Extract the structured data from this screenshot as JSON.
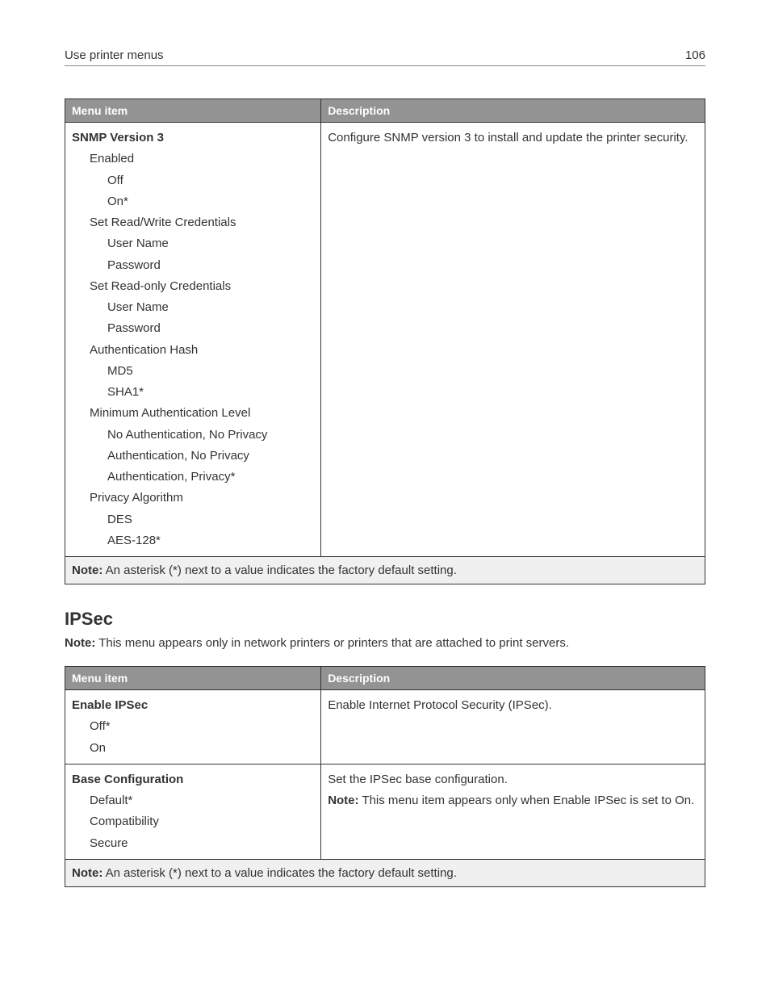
{
  "header": {
    "title": "Use printer menus",
    "page_number": "106"
  },
  "table1": {
    "col_menu": "Menu item",
    "col_desc": "Description",
    "row1": {
      "title": "SNMP Version 3",
      "items": [
        {
          "text": "Enabled",
          "indent": 1
        },
        {
          "text": "Off",
          "indent": 2
        },
        {
          "text": "On*",
          "indent": 2
        },
        {
          "text": "Set Read/Write Credentials",
          "indent": 1
        },
        {
          "text": "User Name",
          "indent": 2
        },
        {
          "text": "Password",
          "indent": 2
        },
        {
          "text": "Set Read-only Credentials",
          "indent": 1
        },
        {
          "text": "User Name",
          "indent": 2
        },
        {
          "text": "Password",
          "indent": 2
        },
        {
          "text": "Authentication Hash",
          "indent": 1
        },
        {
          "text": "MD5",
          "indent": 2
        },
        {
          "text": "SHA1*",
          "indent": 2
        },
        {
          "text": "Minimum Authentication Level",
          "indent": 1
        },
        {
          "text": "No Authentication, No Privacy",
          "indent": 2
        },
        {
          "text": "Authentication, No Privacy",
          "indent": 2
        },
        {
          "text": "Authentication, Privacy*",
          "indent": 2
        },
        {
          "text": "Privacy Algorithm",
          "indent": 1
        },
        {
          "text": "DES",
          "indent": 2
        },
        {
          "text": "AES-128*",
          "indent": 2
        }
      ],
      "desc": "Configure SNMP version 3 to install and update the printer security."
    },
    "note_label": "Note:",
    "note_text": " An asterisk (*) next to a value indicates the factory default setting."
  },
  "section": {
    "heading": "IPSec",
    "note_label": "Note:",
    "note_text": " This menu appears only in network printers or printers that are attached to print servers."
  },
  "table2": {
    "col_menu": "Menu item",
    "col_desc": "Description",
    "row1": {
      "title": "Enable IPSec",
      "items": [
        {
          "text": "Off*",
          "indent": 1
        },
        {
          "text": "On",
          "indent": 1
        }
      ],
      "desc": "Enable Internet Protocol Security (IPSec)."
    },
    "row2": {
      "title": "Base Configuration",
      "items": [
        {
          "text": "Default*",
          "indent": 1
        },
        {
          "text": "Compatibility",
          "indent": 1
        },
        {
          "text": "Secure",
          "indent": 1
        }
      ],
      "desc_line1": "Set the IPSec base configuration.",
      "desc_note_label": "Note:",
      "desc_note_text": " This menu item appears only when Enable IPSec is set to On."
    },
    "note_label": "Note:",
    "note_text": " An asterisk (*) next to a value indicates the factory default setting."
  }
}
